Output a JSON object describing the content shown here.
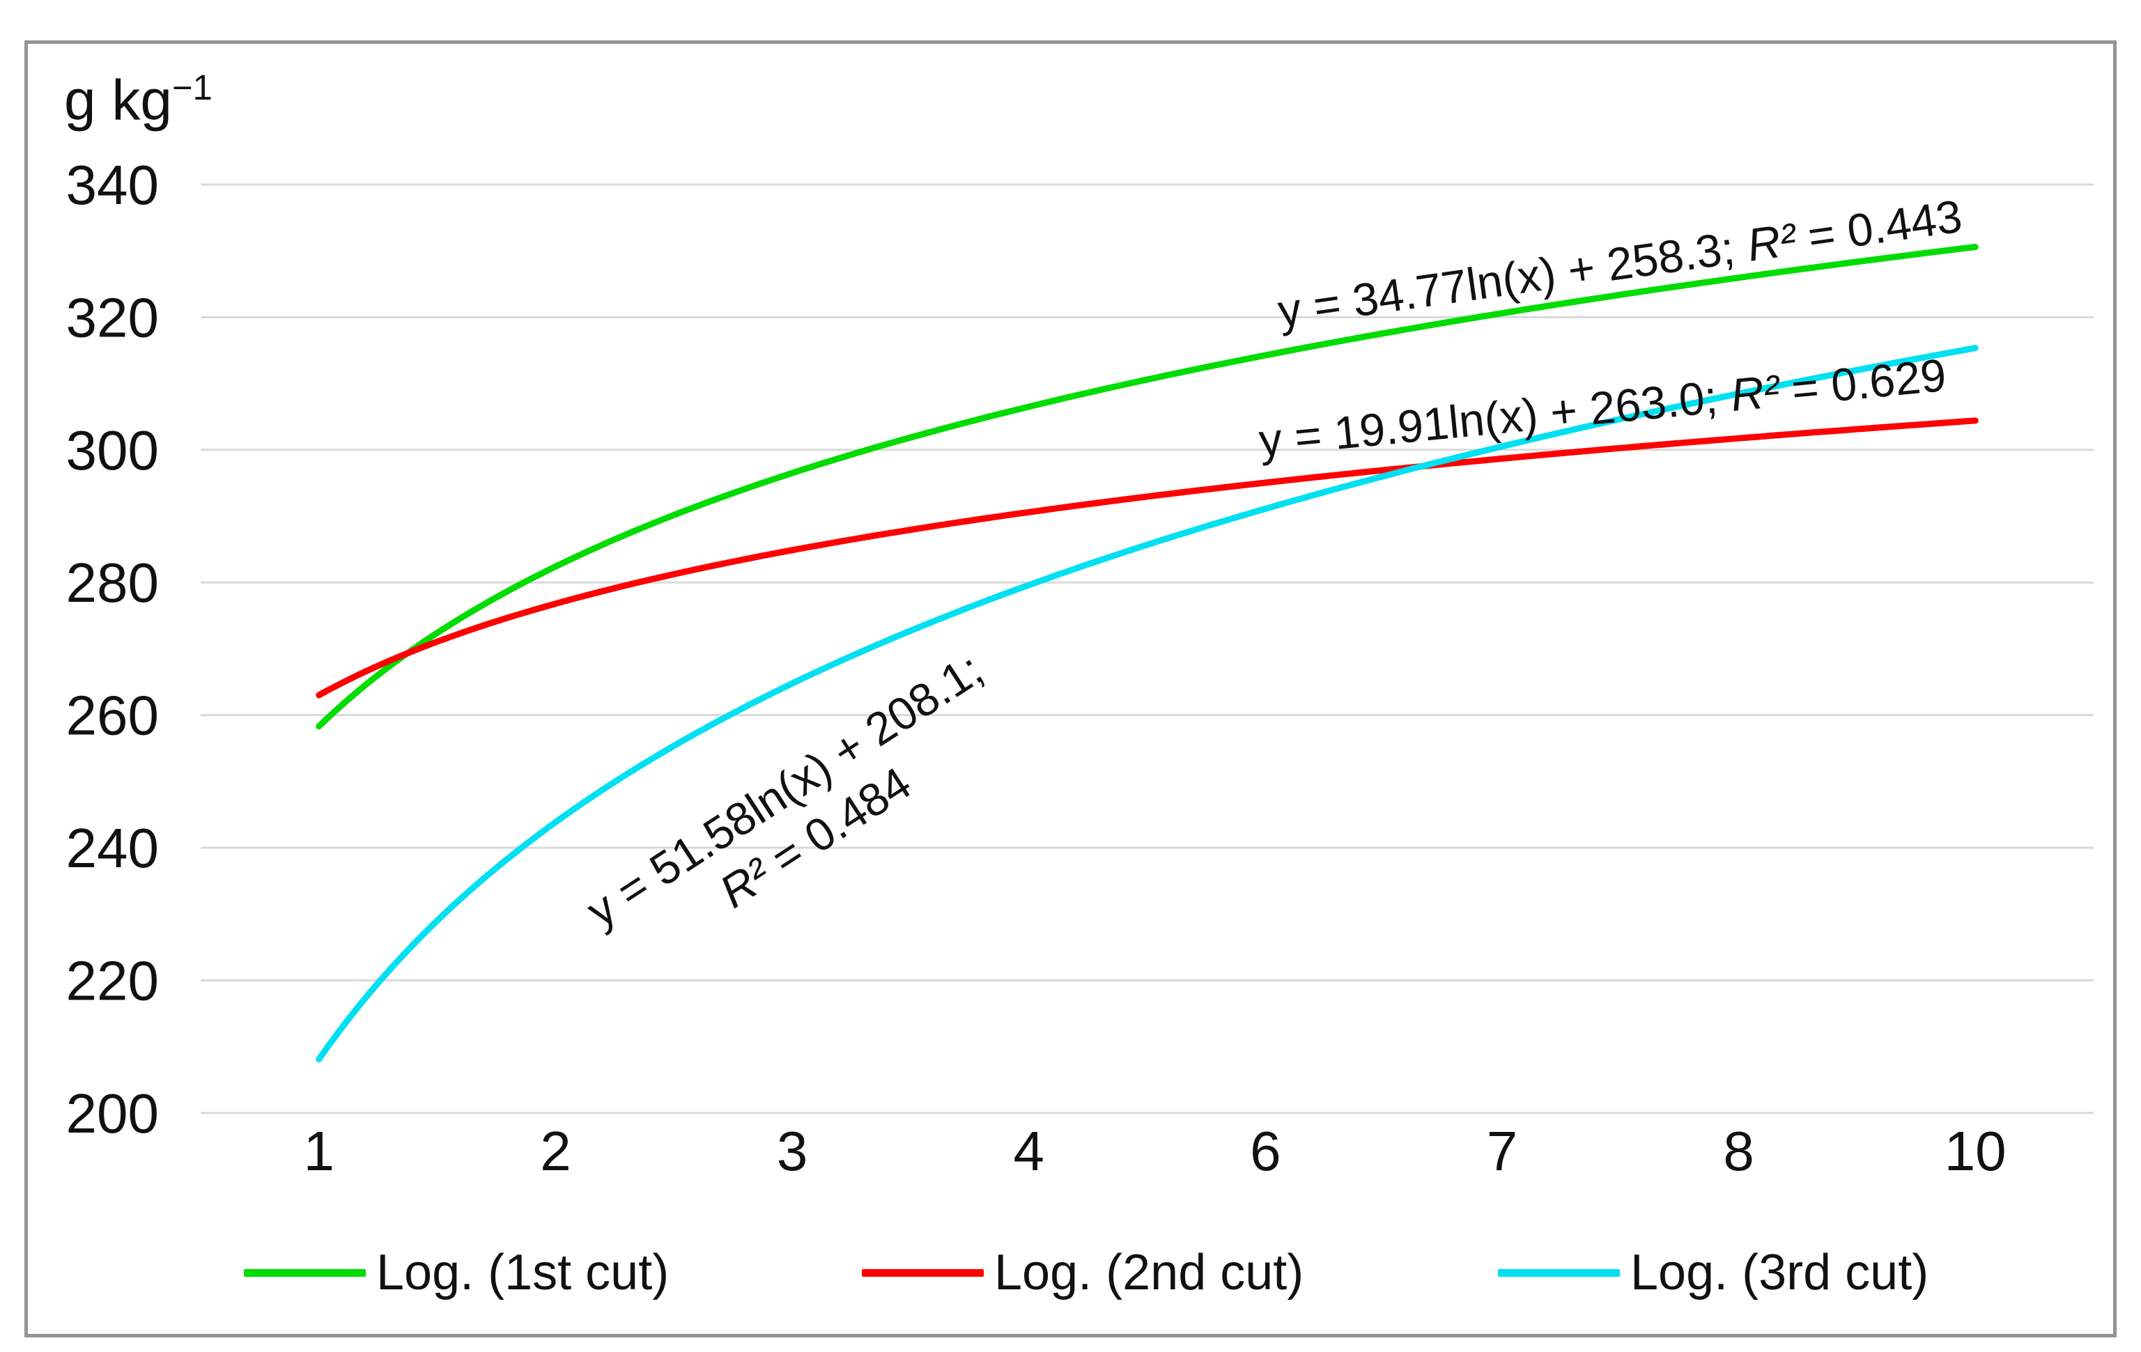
{
  "chart_data": {
    "type": "line",
    "title": "",
    "xlabel": "",
    "ylabel": "g kg⁻¹",
    "ylabel_parts": {
      "base": "g kg",
      "sup": "−1"
    },
    "ylim": [
      200,
      340
    ],
    "y_ticks": [
      340,
      320,
      300,
      280,
      260,
      240,
      220,
      200
    ],
    "x_tick_labels": [
      "1",
      "2",
      "3",
      "4",
      "6",
      "7",
      "8",
      "10"
    ],
    "x_axis_type": "category, equally spaced; trendlines evaluated on category index 1-8",
    "grid": "horizontal gridlines on",
    "legend_position": "bottom",
    "colors": {
      "grid": "#d9d9d9",
      "frame": "#939393",
      "text": "#111111",
      "series1": "#00dc00",
      "series2": "#ff0000",
      "series3": "#00e0f2"
    },
    "series": [
      {
        "name": "Log. (1st cut)",
        "type": "log_trendline",
        "color": "#00dc00",
        "a": 34.77,
        "b": 258.3,
        "r2": 0.443,
        "x_domain": [
          1,
          8
        ],
        "label": {
          "equation": "y = 34.77ln(x) + 258.3;",
          "r2_symbol": "R²",
          "r2_value": " = 0.443"
        }
      },
      {
        "name": "Log. (2nd cut)",
        "type": "log_trendline",
        "color": "#ff0000",
        "a": 19.91,
        "b": 263.0,
        "r2": 0.629,
        "x_domain": [
          1,
          8
        ],
        "label": {
          "equation": "y = 19.91ln(x) + 263.0;",
          "r2_symbol": "R²",
          "r2_value": " = 0.629"
        }
      },
      {
        "name": "Log. (3rd cut)",
        "type": "log_trendline",
        "color": "#00e0f2",
        "a": 51.58,
        "b": 208.1,
        "r2": 0.484,
        "x_domain": [
          1,
          8
        ],
        "label": {
          "equation": "y = 51.58ln(x) + 208.1;",
          "r2_symbol": "R²",
          "r2_value": " = 0.484"
        }
      }
    ]
  }
}
